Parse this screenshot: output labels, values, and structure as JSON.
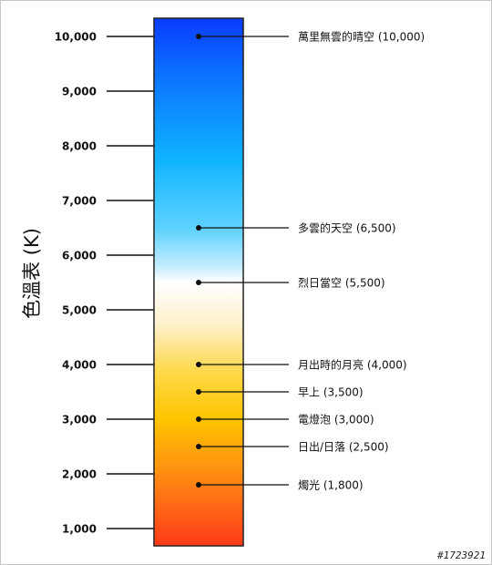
{
  "axis_title": "色溫表 (K)",
  "watermark": "#1723921",
  "colors": {
    "line": "#111111",
    "bar_border": "#222222",
    "gradient": [
      {
        "offset": 0.0,
        "color": "#0a3cff"
      },
      {
        "offset": 0.12,
        "color": "#0b78ff"
      },
      {
        "offset": 0.27,
        "color": "#10b4ff"
      },
      {
        "offset": 0.4,
        "color": "#5fd2ff"
      },
      {
        "offset": 0.47,
        "color": "#c4ecff"
      },
      {
        "offset": 0.5,
        "color": "#ffffff"
      },
      {
        "offset": 0.58,
        "color": "#fdf0cc"
      },
      {
        "offset": 0.67,
        "color": "#ffd94a"
      },
      {
        "offset": 0.76,
        "color": "#ffc400"
      },
      {
        "offset": 0.86,
        "color": "#ff8f12"
      },
      {
        "offset": 1.0,
        "color": "#ff3a1a"
      }
    ]
  },
  "chart_data": {
    "type": "scale",
    "ylabel": "色溫表 (K)",
    "ylim": [
      700,
      10350
    ],
    "ticks": [
      {
        "value": 1000,
        "label": "1,000"
      },
      {
        "value": 2000,
        "label": "2,000"
      },
      {
        "value": 3000,
        "label": "3,000"
      },
      {
        "value": 4000,
        "label": "4,000"
      },
      {
        "value": 5000,
        "label": "5,000"
      },
      {
        "value": 6000,
        "label": "6,000"
      },
      {
        "value": 7000,
        "label": "7,000"
      },
      {
        "value": 8000,
        "label": "8,000"
      },
      {
        "value": 9000,
        "label": "9,000"
      },
      {
        "value": 10000,
        "label": "10,000"
      }
    ],
    "annotations": [
      {
        "value": 10000,
        "label": "萬里無雲的晴空 (10,000)"
      },
      {
        "value": 6500,
        "label": "多雲的天空 (6,500)"
      },
      {
        "value": 5500,
        "label": "烈日當空 (5,500)"
      },
      {
        "value": 4000,
        "label": "月出時的月亮 (4,000)"
      },
      {
        "value": 3500,
        "label": "早上 (3,500)"
      },
      {
        "value": 3000,
        "label": "電燈泡 (3,000)"
      },
      {
        "value": 2500,
        "label": "日出/日落 (2,500)"
      },
      {
        "value": 1800,
        "label": "燭光 (1,800)"
      }
    ]
  }
}
